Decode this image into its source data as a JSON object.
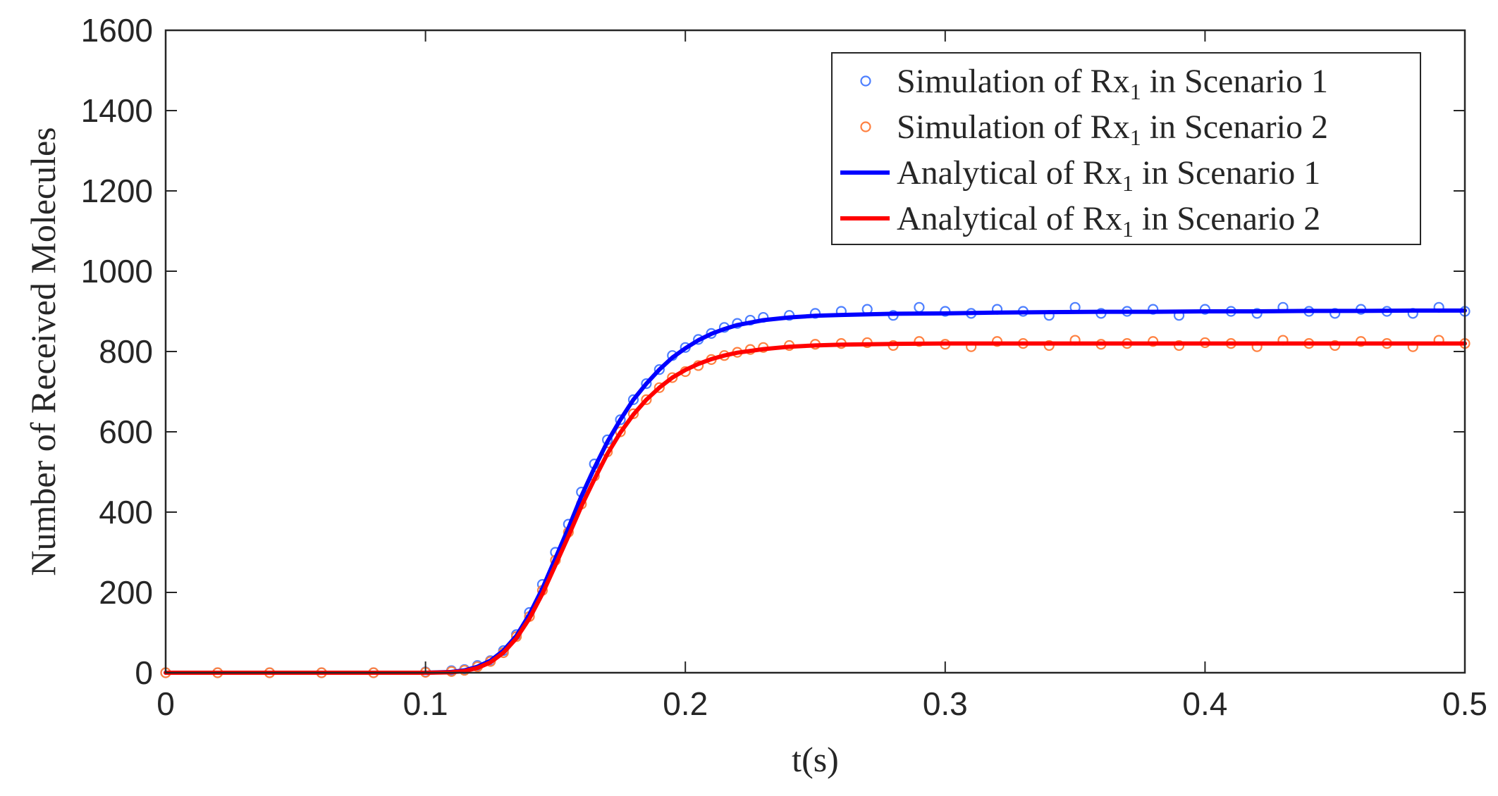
{
  "chart_data": {
    "type": "scatter",
    "title": "",
    "xlabel": "t(s)",
    "ylabel": "Number of Received Molecules",
    "xlim": [
      0,
      0.5
    ],
    "ylim": [
      0,
      1600
    ],
    "x_ticks": [
      0,
      0.1,
      0.2,
      0.3,
      0.4,
      0.5
    ],
    "y_ticks": [
      0,
      200,
      400,
      600,
      800,
      1000,
      1200,
      1400,
      1600
    ],
    "x_tick_labels": [
      "0",
      "0.1",
      "0.2",
      "0.3",
      "0.4",
      "0.5"
    ],
    "y_tick_labels": [
      "0",
      "200",
      "400",
      "600",
      "800",
      "1000",
      "1200",
      "1400",
      "1600"
    ],
    "grid": false,
    "legend_position": "top-right",
    "series": [
      {
        "name": "Simulation of Rx1 in Scenario 1",
        "legend_label": "Simulation of Rx",
        "legend_sub": "1",
        "legend_tail": " in Scenario 1",
        "kind": "scatter",
        "color": "#4d7fff",
        "x": [
          0.0,
          0.02,
          0.04,
          0.06,
          0.08,
          0.1,
          0.11,
          0.115,
          0.12,
          0.125,
          0.13,
          0.135,
          0.14,
          0.145,
          0.15,
          0.155,
          0.16,
          0.165,
          0.17,
          0.175,
          0.18,
          0.185,
          0.19,
          0.195,
          0.2,
          0.205,
          0.21,
          0.215,
          0.22,
          0.225,
          0.23,
          0.24,
          0.25,
          0.26,
          0.27,
          0.28,
          0.29,
          0.3,
          0.31,
          0.32,
          0.33,
          0.34,
          0.35,
          0.36,
          0.37,
          0.38,
          0.39,
          0.4,
          0.41,
          0.42,
          0.43,
          0.44,
          0.45,
          0.46,
          0.47,
          0.48,
          0.49,
          0.5
        ],
        "y": [
          0,
          0,
          0,
          0,
          0,
          2,
          5,
          8,
          18,
          30,
          55,
          95,
          150,
          220,
          300,
          370,
          450,
          520,
          580,
          630,
          680,
          720,
          755,
          790,
          810,
          830,
          845,
          860,
          870,
          878,
          885,
          890,
          895,
          900,
          905,
          890,
          910,
          900,
          895,
          905,
          900,
          890,
          910,
          895,
          900,
          905,
          890,
          905,
          900,
          895,
          910,
          900,
          895,
          905,
          900,
          895,
          910,
          900
        ]
      },
      {
        "name": "Simulation of Rx1 in Scenario 2",
        "legend_label": "Simulation of Rx",
        "legend_sub": "1",
        "legend_tail": " in Scenario 2",
        "kind": "scatter",
        "color": "#ff8040",
        "x": [
          0.0,
          0.02,
          0.04,
          0.06,
          0.08,
          0.1,
          0.11,
          0.115,
          0.12,
          0.125,
          0.13,
          0.135,
          0.14,
          0.145,
          0.15,
          0.155,
          0.16,
          0.165,
          0.17,
          0.175,
          0.18,
          0.185,
          0.19,
          0.195,
          0.2,
          0.205,
          0.21,
          0.215,
          0.22,
          0.225,
          0.23,
          0.24,
          0.25,
          0.26,
          0.27,
          0.28,
          0.29,
          0.3,
          0.31,
          0.32,
          0.33,
          0.34,
          0.35,
          0.36,
          0.37,
          0.38,
          0.39,
          0.4,
          0.41,
          0.42,
          0.43,
          0.44,
          0.45,
          0.46,
          0.47,
          0.48,
          0.49,
          0.5
        ],
        "y": [
          0,
          0,
          0,
          0,
          0,
          1,
          3,
          6,
          15,
          28,
          50,
          90,
          140,
          205,
          280,
          350,
          420,
          490,
          550,
          600,
          645,
          680,
          710,
          735,
          750,
          765,
          780,
          790,
          798,
          805,
          810,
          815,
          818,
          820,
          822,
          815,
          825,
          818,
          812,
          825,
          820,
          815,
          828,
          818,
          820,
          825,
          815,
          822,
          820,
          812,
          828,
          820,
          815,
          825,
          820,
          812,
          828,
          820
        ]
      },
      {
        "name": "Analytical of Rx1 in Scenario 1",
        "legend_label": "Analytical of Rx",
        "legend_sub": "1",
        "legend_tail": " in Scenario 1",
        "kind": "line",
        "color": "#0000ff",
        "x": [
          0.0,
          0.05,
          0.1,
          0.11,
          0.115,
          0.12,
          0.125,
          0.13,
          0.135,
          0.14,
          0.145,
          0.15,
          0.155,
          0.16,
          0.165,
          0.17,
          0.175,
          0.18,
          0.185,
          0.19,
          0.195,
          0.2,
          0.205,
          0.21,
          0.215,
          0.22,
          0.23,
          0.24,
          0.25,
          0.26,
          0.28,
          0.3,
          0.32,
          0.34,
          0.36,
          0.38,
          0.4,
          0.42,
          0.44,
          0.46,
          0.48,
          0.5
        ],
        "y": [
          0,
          0,
          0,
          2,
          6,
          15,
          30,
          55,
          92,
          145,
          210,
          285,
          360,
          440,
          510,
          575,
          630,
          680,
          720,
          755,
          785,
          808,
          828,
          844,
          856,
          866,
          878,
          885,
          889,
          891,
          894,
          895,
          897,
          898,
          899,
          899,
          900,
          900,
          901,
          901,
          902,
          902
        ]
      },
      {
        "name": "Analytical of Rx1 in Scenario 2",
        "legend_label": "Analytical of Rx",
        "legend_sub": "1",
        "legend_tail": " in Scenario 2",
        "kind": "line",
        "color": "#ff0000",
        "x": [
          0.0,
          0.05,
          0.1,
          0.11,
          0.115,
          0.12,
          0.125,
          0.13,
          0.135,
          0.14,
          0.145,
          0.15,
          0.155,
          0.16,
          0.165,
          0.17,
          0.175,
          0.18,
          0.185,
          0.19,
          0.195,
          0.2,
          0.205,
          0.21,
          0.215,
          0.22,
          0.23,
          0.24,
          0.25,
          0.26,
          0.28,
          0.3,
          0.32,
          0.34,
          0.36,
          0.38,
          0.4,
          0.42,
          0.44,
          0.46,
          0.48,
          0.5
        ],
        "y": [
          0,
          0,
          0,
          1,
          4,
          12,
          26,
          50,
          86,
          135,
          197,
          268,
          340,
          415,
          482,
          545,
          598,
          643,
          680,
          710,
          735,
          754,
          769,
          781,
          790,
          797,
          806,
          812,
          815,
          817,
          819,
          820,
          820,
          820,
          820,
          820,
          820,
          820,
          820,
          820,
          820,
          820
        ]
      }
    ]
  }
}
